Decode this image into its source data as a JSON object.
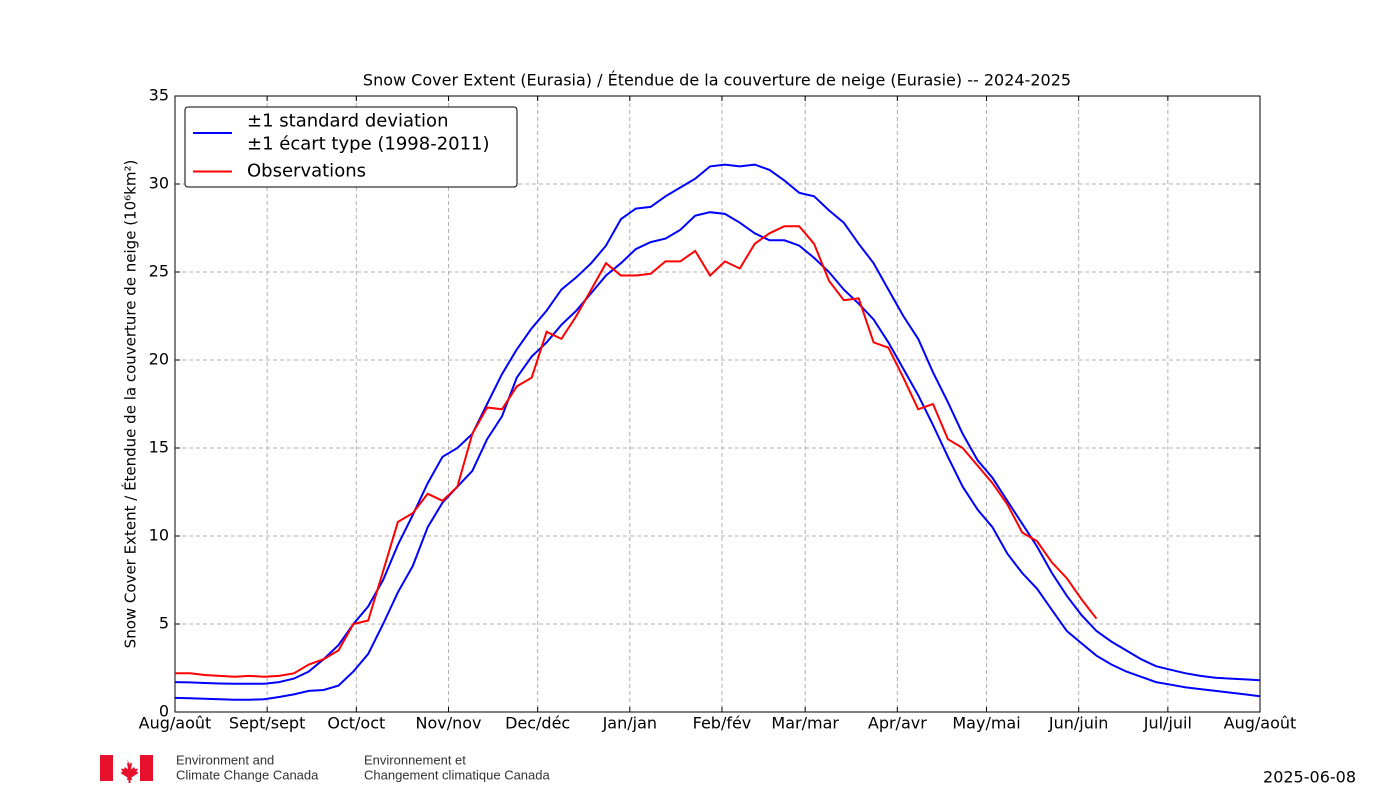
{
  "chart_data": {
    "type": "line",
    "title": "Snow Cover Extent (Eurasia) / Étendue de la couverture de neige (Eurasie) -- 2024-2025",
    "y_label": "Snow Cover Extent / Étendue de la couverture de neige (10⁶km²)",
    "x": [
      0,
      5,
      10,
      15,
      20,
      25,
      30,
      35,
      40,
      45,
      50,
      55,
      60,
      65,
      70,
      75,
      80,
      85,
      90,
      95,
      100,
      105,
      110,
      115,
      120,
      125,
      130,
      135,
      140,
      145,
      150,
      155,
      160,
      165,
      170,
      175,
      180,
      185,
      190,
      195,
      200,
      205,
      210,
      215,
      220,
      225,
      230,
      235,
      240,
      245,
      250,
      255,
      260,
      265,
      270,
      275,
      280,
      285,
      290,
      295,
      300,
      305,
      310,
      315,
      320,
      325,
      330,
      335,
      340,
      345,
      350,
      355,
      360,
      365
    ],
    "series": [
      {
        "name": "±1 standard deviation\n±1 écart type (1998-2011)",
        "color": "#0000ff",
        "values": [
          1.7,
          1.68,
          1.65,
          1.62,
          1.6,
          1.6,
          1.6,
          1.7,
          1.9,
          2.3,
          3.0,
          3.8,
          5.0,
          6.0,
          7.5,
          9.5,
          11.2,
          13.0,
          14.5,
          15.0,
          15.8,
          17.5,
          19.2,
          20.6,
          21.8,
          22.8,
          24.0,
          24.7,
          25.5,
          26.5,
          28.0,
          28.6,
          28.7,
          29.3,
          29.8,
          30.3,
          31.0,
          31.1,
          31.0,
          31.1,
          30.8,
          30.2,
          29.5,
          29.3,
          28.5,
          27.8,
          26.6,
          25.5,
          24.0,
          22.5,
          21.2,
          19.3,
          17.6,
          15.8,
          14.3,
          13.3,
          12.0,
          10.7,
          9.4,
          7.9,
          6.6,
          5.5,
          4.6,
          4.0,
          3.5,
          3.0,
          2.6,
          2.4,
          2.2,
          2.05,
          1.95,
          1.9,
          1.85,
          1.8
        ]
      },
      {
        "color": "#0000ff",
        "values": [
          0.8,
          0.78,
          0.75,
          0.72,
          0.7,
          0.7,
          0.72,
          0.85,
          1.0,
          1.2,
          1.25,
          1.5,
          2.3,
          3.3,
          5.0,
          6.8,
          8.3,
          10.5,
          11.9,
          12.8,
          13.7,
          15.5,
          16.8,
          19.0,
          20.2,
          21.0,
          22.0,
          22.8,
          23.8,
          24.8,
          25.5,
          26.3,
          26.7,
          26.9,
          27.4,
          28.2,
          28.4,
          28.3,
          27.8,
          27.2,
          26.8,
          26.8,
          26.5,
          25.8,
          25.0,
          24.0,
          23.2,
          22.3,
          21.0,
          19.5,
          18.0,
          16.3,
          14.5,
          12.8,
          11.5,
          10.5,
          9.0,
          7.9,
          7.0,
          5.8,
          4.6,
          3.9,
          3.2,
          2.7,
          2.3,
          2.0,
          1.7,
          1.55,
          1.4,
          1.3,
          1.2,
          1.1,
          1.0,
          0.9
        ]
      },
      {
        "name": "Observations",
        "color": "#ff0000",
        "values": [
          2.2,
          2.2,
          2.1,
          2.05,
          2.0,
          2.05,
          2.0,
          2.05,
          2.2,
          2.7,
          3.0,
          3.5,
          5.0,
          5.2,
          8.0,
          10.8,
          11.3,
          12.4,
          12.0,
          12.8,
          15.8,
          17.3,
          17.2,
          18.5,
          19.0,
          21.6,
          21.2,
          22.5,
          24.0,
          25.5,
          24.8,
          24.8,
          24.9,
          25.6,
          25.6,
          26.2,
          24.8,
          25.6,
          25.2,
          26.6,
          27.2,
          27.6,
          27.6,
          26.6,
          24.5,
          23.4,
          23.5,
          21.0,
          20.7,
          19.0,
          17.2,
          17.5,
          15.5,
          15.0,
          14.0,
          13.0,
          11.8,
          10.2,
          9.7,
          8.5,
          7.6,
          6.4,
          5.3,
          null,
          null,
          null,
          null,
          null,
          null,
          null,
          null,
          null,
          null,
          null
        ]
      }
    ],
    "xlim": [
      0,
      365
    ],
    "xticks": [
      {
        "value": 0,
        "label": "Aug/août"
      },
      {
        "value": 31,
        "label": "Sept/sept"
      },
      {
        "value": 61,
        "label": "Oct/oct"
      },
      {
        "value": 92,
        "label": "Nov/nov"
      },
      {
        "value": 122,
        "label": "Dec/déc"
      },
      {
        "value": 153,
        "label": "Jan/jan"
      },
      {
        "value": 184,
        "label": "Feb/fév"
      },
      {
        "value": 212,
        "label": "Mar/mar"
      },
      {
        "value": 243,
        "label": "Apr/avr"
      },
      {
        "value": 273,
        "label": "May/mai"
      },
      {
        "value": 304,
        "label": "Jun/juin"
      },
      {
        "value": 334,
        "label": "Jul/juil"
      },
      {
        "value": 365,
        "label": "Aug/août"
      }
    ],
    "ylim": [
      0,
      35
    ],
    "yticks": [
      0,
      5,
      10,
      15,
      20,
      25,
      30,
      35
    ],
    "grid": true,
    "legend": "upper left"
  },
  "footer": {
    "org_en": [
      "Environment and",
      "Climate Change Canada"
    ],
    "org_fr": [
      "Environnement et",
      "Changement climatique Canada"
    ],
    "date": "2025-06-08"
  }
}
